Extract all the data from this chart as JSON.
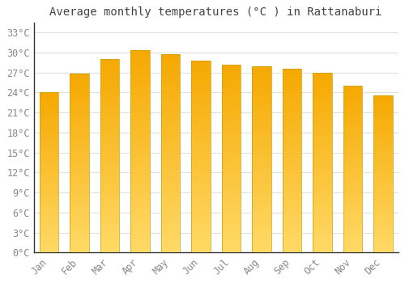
{
  "title": "Average monthly temperatures (°C ) in Rattanaburi",
  "months": [
    "Jan",
    "Feb",
    "Mar",
    "Apr",
    "May",
    "Jun",
    "Jul",
    "Aug",
    "Sep",
    "Oct",
    "Nov",
    "Dec"
  ],
  "values": [
    24.0,
    26.8,
    29.0,
    30.3,
    29.7,
    28.8,
    28.2,
    27.9,
    27.6,
    27.0,
    25.0,
    23.5
  ],
  "bar_color_top": "#F5A800",
  "bar_color_bottom": "#FFD966",
  "bar_edge_color": "#C8A000",
  "background_color": "#FFFFFF",
  "grid_color": "#DDDDDD",
  "tick_label_color": "#888888",
  "title_color": "#444444",
  "ytick_values": [
    0,
    3,
    6,
    9,
    12,
    15,
    18,
    21,
    24,
    27,
    30,
    33
  ],
  "ylim": [
    0,
    34.5
  ],
  "title_fontsize": 10,
  "tick_fontsize": 8.5
}
